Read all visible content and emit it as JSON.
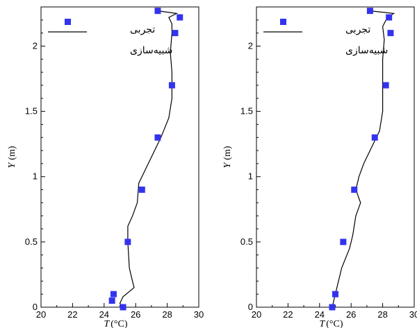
{
  "chart_data": [
    {
      "type": "scatter",
      "xlabel_symbol": "T",
      "xlabel_unit": "(°C)",
      "ylabel_symbol": "Y",
      "ylabel_unit": "(m)",
      "xlim": [
        20,
        30
      ],
      "ylim": [
        0,
        2.3
      ],
      "xticks": [
        20,
        22,
        24,
        26,
        28,
        30
      ],
      "yticks": [
        0,
        0.5,
        1,
        1.5,
        2
      ],
      "grid": false,
      "legend": {
        "placement": "top-left",
        "experiment_label": "تجربی",
        "simulation_label": "شبیه‌سازی"
      },
      "series": [
        {
          "name": "تجربی",
          "kind": "markers",
          "color": "#3333ee",
          "points": [
            {
              "x": 25.2,
              "y": 0.0
            },
            {
              "x": 24.5,
              "y": 0.05
            },
            {
              "x": 24.6,
              "y": 0.1
            },
            {
              "x": 25.5,
              "y": 0.5
            },
            {
              "x": 26.4,
              "y": 0.9
            },
            {
              "x": 27.4,
              "y": 1.3
            },
            {
              "x": 28.3,
              "y": 1.7
            },
            {
              "x": 28.5,
              "y": 2.1
            },
            {
              "x": 28.8,
              "y": 2.22
            },
            {
              "x": 27.4,
              "y": 2.27
            }
          ]
        },
        {
          "name": "شبیه‌سازی",
          "kind": "line",
          "color": "#000000",
          "points": [
            {
              "x": 25.2,
              "y": 0.0
            },
            {
              "x": 25.0,
              "y": 0.03
            },
            {
              "x": 25.2,
              "y": 0.08
            },
            {
              "x": 25.9,
              "y": 0.15
            },
            {
              "x": 25.6,
              "y": 0.3
            },
            {
              "x": 25.5,
              "y": 0.5
            },
            {
              "x": 25.5,
              "y": 0.62
            },
            {
              "x": 25.8,
              "y": 0.7
            },
            {
              "x": 26.1,
              "y": 0.8
            },
            {
              "x": 26.2,
              "y": 0.95
            },
            {
              "x": 26.6,
              "y": 1.05
            },
            {
              "x": 27.0,
              "y": 1.15
            },
            {
              "x": 27.6,
              "y": 1.3
            },
            {
              "x": 28.1,
              "y": 1.45
            },
            {
              "x": 28.3,
              "y": 1.6
            },
            {
              "x": 28.3,
              "y": 1.8
            },
            {
              "x": 28.2,
              "y": 1.95
            },
            {
              "x": 28.3,
              "y": 2.1
            },
            {
              "x": 28.3,
              "y": 2.17
            },
            {
              "x": 28.1,
              "y": 2.22
            },
            {
              "x": 28.6,
              "y": 2.25
            },
            {
              "x": 27.4,
              "y": 2.27
            }
          ]
        }
      ]
    },
    {
      "type": "scatter",
      "xlabel_symbol": "T",
      "xlabel_unit": "(°C)",
      "ylabel_symbol": "Y",
      "ylabel_unit": "(m)",
      "xlim": [
        20,
        30
      ],
      "ylim": [
        0,
        2.3
      ],
      "xticks": [
        20,
        22,
        24,
        26,
        28,
        30
      ],
      "yticks": [
        0,
        0.5,
        1,
        1.5,
        2
      ],
      "grid": false,
      "legend": {
        "placement": "top-left",
        "experiment_label": "تجربی",
        "simulation_label": "شبیه‌سازی"
      },
      "series": [
        {
          "name": "تجربی",
          "kind": "markers",
          "color": "#3333ee",
          "points": [
            {
              "x": 24.8,
              "y": 0.0
            },
            {
              "x": 25.0,
              "y": 0.1
            },
            {
              "x": 25.5,
              "y": 0.5
            },
            {
              "x": 26.2,
              "y": 0.9
            },
            {
              "x": 27.5,
              "y": 1.3
            },
            {
              "x": 28.2,
              "y": 1.7
            },
            {
              "x": 28.5,
              "y": 2.1
            },
            {
              "x": 28.4,
              "y": 2.22
            },
            {
              "x": 27.2,
              "y": 2.27
            }
          ]
        },
        {
          "name": "شبیه‌سازی",
          "kind": "line",
          "color": "#000000",
          "points": [
            {
              "x": 24.8,
              "y": 0.0
            },
            {
              "x": 25.0,
              "y": 0.1
            },
            {
              "x": 25.4,
              "y": 0.3
            },
            {
              "x": 25.9,
              "y": 0.45
            },
            {
              "x": 26.1,
              "y": 0.55
            },
            {
              "x": 26.3,
              "y": 0.7
            },
            {
              "x": 26.6,
              "y": 0.8
            },
            {
              "x": 26.3,
              "y": 0.9
            },
            {
              "x": 26.5,
              "y": 1.0
            },
            {
              "x": 26.8,
              "y": 1.1
            },
            {
              "x": 27.2,
              "y": 1.2
            },
            {
              "x": 27.8,
              "y": 1.35
            },
            {
              "x": 28.0,
              "y": 1.5
            },
            {
              "x": 28.0,
              "y": 1.7
            },
            {
              "x": 28.0,
              "y": 1.9
            },
            {
              "x": 28.1,
              "y": 2.05
            },
            {
              "x": 28.0,
              "y": 2.15
            },
            {
              "x": 28.3,
              "y": 2.22
            },
            {
              "x": 28.7,
              "y": 2.25
            },
            {
              "x": 27.2,
              "y": 2.27
            }
          ]
        }
      ]
    }
  ]
}
